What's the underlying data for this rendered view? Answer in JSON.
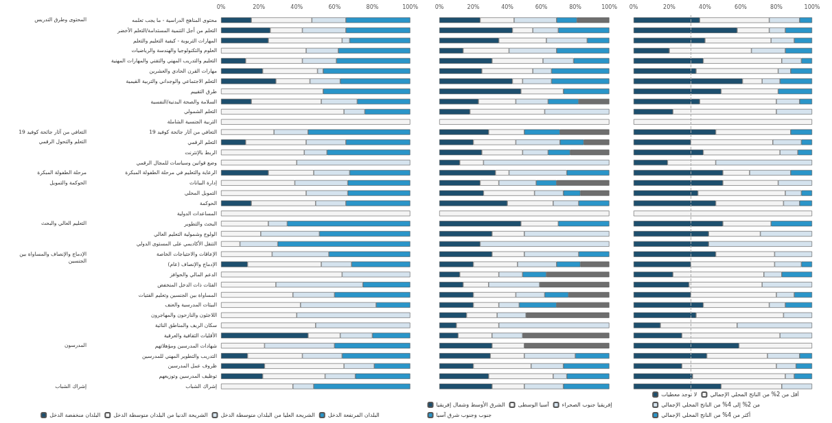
{
  "chart_data": [
    {
      "type": "bar",
      "orientation": "horizontal",
      "stacked": true,
      "xlim": [
        0,
        100
      ],
      "xticks": [
        {
          "value": 0,
          "label": "0%"
        },
        {
          "value": 20,
          "label": "20%"
        },
        {
          "value": 40,
          "label": "40%"
        },
        {
          "value": 60,
          "label": "60%"
        },
        {
          "value": 80,
          "label": "80%"
        },
        {
          "value": 100,
          "label": "100%"
        }
      ],
      "grid": false,
      "legend": "bottom",
      "categories": [
        "محتوى المناهج الدراسية - ما يجب تعلمه",
        "التعلم من أجل التنمية المستدامة/التعلم الأخضر",
        "المهارات التربوية - كيفية التعليم والتعلم",
        "العلوم والتكنولوجيا والهندسة والرياضيات",
        "التعليم والتدريب المهني والتقني والمهارات المهنية",
        "مهارات القرن الحادي والعشرين",
        "التعلم الاجتماعي والوجداني والتربية القيمية",
        "طرق التقييم",
        "السلامة والصحة البدنية/النفسية",
        "التعلم الشمولي",
        "التربية الجنسية الشاملة",
        "التعافي من آثار جائحة كوفيد 19",
        "التعلم الرقمي",
        "الربط بالإنترنت",
        "وضع قوانين وسياسات للمجال الرقمي",
        "الرعاية والتعليم في مرحلة الطفولة المبكرة",
        "إدارة البيانات",
        "التمويل المحلي",
        "الحوكمة",
        "المساعدات الدولية",
        "البحث والتطوير",
        "الولوج وشمولية التعليم العالي",
        "التنقل الأكاديمي على المستوى الدولي",
        "الإعاقات والاحتياجات الخاصة",
        "الإدماج والإنصاف (عام)",
        "الدعم المالي والحوافز",
        "الفئات ذات الدخل المنخفض",
        "المساواة بين الجنسين وتعليم الفتيات",
        "البيئات المدرسية والعنف",
        "اللاجئون والنازحون والمهاجرون",
        "سكان الريف والمناطق النائية",
        "الأقليات الثقافية والعرقية",
        "شهادات المدرسين ومؤهلاتهم",
        "التدريب والتطوير المهني للمدرسين",
        "ظروف عمل المدرسين",
        "توظيف المدرسين وتوزيعهم",
        "إشراك الشباب"
      ],
      "annotations": [
        "المحتوى وطرق التدريس",
        "التعافي من آثار جائحة كوفيد 19",
        "التعلم والتحول الرقمي",
        "مرحلة الطفولة المبكرة",
        "الحوكمة والتمويل",
        "التعليم العالي والبحث",
        "الإدماج والإنصاف والمساواة بين الجنسين",
        "المدرسون",
        "إشراك الشباب"
      ],
      "series": [
        {
          "name": "البلدان منخفضة الدخل",
          "color": "#1d4f6e",
          "values": [
            16,
            26,
            25,
            0,
            13,
            22,
            29,
            0,
            16,
            0,
            0,
            0,
            13,
            0,
            0,
            25,
            0,
            0,
            16,
            0,
            0,
            0,
            0,
            0,
            14,
            0,
            0,
            0,
            0,
            0,
            0,
            46,
            0,
            14,
            23,
            22,
            0
          ]
        },
        {
          "name": "الشريحة الدنيا من البلدان متوسطة الدخل",
          "color": "#f4f4f4",
          "values": [
            32,
            17,
            39,
            45,
            30,
            29,
            18,
            54,
            37,
            65,
            100,
            28,
            32,
            44,
            40,
            24,
            39,
            45,
            34,
            100,
            25,
            21,
            10,
            27,
            39,
            64,
            29,
            38,
            42,
            40,
            50,
            17,
            23,
            29,
            42,
            33,
            38
          ]
        },
        {
          "name": "الشريحة العليا من البلدان متوسطة الدخل",
          "color": "#d5e3ee",
          "values": [
            18,
            23,
            4,
            17,
            18,
            3,
            16,
            0,
            19,
            11,
            0,
            18,
            21,
            12,
            60,
            19,
            28,
            22,
            16,
            0,
            10,
            31,
            20,
            30,
            16,
            36,
            46,
            22,
            40,
            60,
            50,
            17,
            37,
            21,
            16,
            16,
            11
          ]
        },
        {
          "name": "البلدان المرتفعة الدخل",
          "color": "#2a95c9",
          "values": [
            34,
            34,
            32,
            38,
            39,
            46,
            37,
            46,
            28,
            24,
            0,
            54,
            34,
            44,
            0,
            32,
            33,
            33,
            34,
            0,
            65,
            48,
            70,
            43,
            31,
            0,
            25,
            40,
            18,
            0,
            0,
            20,
            40,
            36,
            19,
            29,
            51
          ]
        }
      ]
    },
    {
      "type": "bar",
      "orientation": "horizontal",
      "stacked": true,
      "xlim": [
        0,
        100
      ],
      "tick_labels": "x",
      "xticks": [
        {
          "value": 0,
          "label": "0%"
        },
        {
          "value": 20,
          "label": "20%"
        },
        {
          "value": 40,
          "label": "40%"
        },
        {
          "value": 60,
          "label": "60%"
        },
        {
          "value": 80,
          "label": "80%"
        },
        {
          "value": 100,
          "label": "100%"
        }
      ],
      "grid": false,
      "legend": "bottom",
      "categories": [
        null,
        null,
        null,
        null,
        null,
        null,
        null,
        null,
        null,
        null,
        null,
        null,
        null,
        null,
        null,
        null,
        null,
        null,
        null,
        null,
        null,
        null,
        null,
        null,
        null,
        null,
        null,
        null,
        null,
        null,
        null,
        null,
        null,
        null,
        null,
        null,
        null
      ],
      "series": [
        {
          "name": "الشرق الأوسط وشمال إفريقيا",
          "color": "#1d4f6e",
          "values": [
            24,
            43,
            35,
            14,
            31,
            25,
            43,
            48,
            23,
            18,
            0,
            29,
            20,
            25,
            12,
            33,
            24,
            26,
            40,
            0,
            48,
            31,
            24,
            31,
            20,
            12,
            14,
            20,
            20,
            16,
            10,
            11,
            31,
            30,
            20,
            29,
            31
          ]
        },
        {
          "name": "آسيا الوسطى",
          "color": "#f4f4f4",
          "values": [
            20,
            12,
            28,
            27,
            30,
            30,
            6,
            25,
            22,
            44,
            100,
            21,
            25,
            24,
            14,
            8,
            11,
            30,
            27,
            100,
            22,
            19,
            0,
            19,
            26,
            23,
            15,
            25,
            15,
            18,
            25,
            20,
            19,
            20,
            34,
            38,
            19
          ]
        },
        {
          "name": "إفريقيا جنوب الصحراء",
          "color": "#d5e3ee",
          "values": [
            25,
            15,
            24,
            28,
            18,
            11,
            17,
            0,
            19,
            38,
            0,
            0,
            26,
            15,
            74,
            34,
            22,
            17,
            15,
            0,
            0,
            50,
            76,
            32,
            23,
            14,
            30,
            17,
            12,
            17,
            65,
            18,
            0,
            30,
            19,
            8,
            23
          ]
        },
        {
          "name": "جنوب وجنوب شرق آسيا",
          "color": "#2a95c9",
          "values": [
            12,
            30,
            13,
            31,
            21,
            34,
            34,
            27,
            18,
            0,
            0,
            21,
            14,
            13,
            0,
            25,
            12,
            10,
            18,
            0,
            30,
            0,
            0,
            18,
            14,
            14,
            0,
            14,
            22,
            0,
            0,
            0,
            0,
            20,
            27,
            25,
            27
          ]
        },
        {
          "color": "#6e6e6e",
          "values": [
            19,
            0,
            0,
            0,
            0,
            0,
            0,
            0,
            18,
            0,
            0,
            29,
            15,
            23,
            0,
            0,
            31,
            17,
            0,
            0,
            0,
            0,
            0,
            0,
            17,
            37,
            41,
            24,
            31,
            49,
            0,
            51,
            50,
            0,
            0,
            0,
            0
          ]
        }
      ]
    },
    {
      "type": "bar",
      "orientation": "horizontal",
      "stacked": true,
      "xlim": [
        0,
        100
      ],
      "tick_labels": "x",
      "xticks": [
        {
          "value": 0,
          "label": "0%"
        },
        {
          "value": 20,
          "label": "20%"
        },
        {
          "value": 40,
          "label": "40%"
        },
        {
          "value": 60,
          "label": "60%"
        },
        {
          "value": 80,
          "label": "80%"
        },
        {
          "value": 100,
          "label": "100%"
        }
      ],
      "grid": false,
      "legend": "bottom",
      "ref_lines": [
        {
          "axis": "x",
          "value": 32,
          "color": "#aaaaaa",
          "line_style": "dashed"
        }
      ],
      "categories": [
        null,
        null,
        null,
        null,
        null,
        null,
        null,
        null,
        null,
        null,
        null,
        null,
        null,
        null,
        null,
        null,
        null,
        null,
        null,
        null,
        null,
        null,
        null,
        null,
        null,
        null,
        null,
        null,
        null,
        null,
        null,
        null,
        null,
        null,
        null,
        null,
        null
      ],
      "series": [
        {
          "name": "لا توجد معطيات",
          "color": "#1d4f6e",
          "values": [
            37,
            58,
            40,
            20,
            39,
            35,
            61,
            49,
            37,
            22,
            0,
            46,
            32,
            39,
            19,
            50,
            50,
            36,
            46,
            0,
            50,
            42,
            42,
            46,
            32,
            22,
            31,
            32,
            39,
            35,
            15,
            27,
            59,
            41,
            27,
            33,
            49
          ]
        },
        {
          "name": "أقل من 2% من الناتج المحلي الإجمالي",
          "color": "#f4f4f4",
          "values": [
            39,
            18,
            37,
            46,
            44,
            46,
            11,
            32,
            43,
            58,
            100,
            42,
            46,
            43,
            27,
            15,
            31,
            49,
            38,
            100,
            27,
            29,
            0,
            33,
            47,
            51,
            41,
            48,
            37,
            49,
            43,
            55,
            41,
            34,
            53,
            52,
            34
          ]
        },
        {
          "name": "من 2% إلى 4% من الناتج المحلي الإجمالي",
          "color": "#d5e3ee",
          "values": [
            17,
            9,
            13,
            19,
            11,
            7,
            10,
            0,
            13,
            20,
            0,
            0,
            16,
            10,
            54,
            23,
            19,
            9,
            9,
            0,
            0,
            29,
            58,
            21,
            15,
            10,
            28,
            10,
            9,
            16,
            42,
            18,
            0,
            18,
            11,
            5,
            17
          ]
        },
        {
          "name": "أكثر من 4% من الناتج المحلي الإجمالي",
          "color": "#2a95c9",
          "values": [
            7,
            15,
            10,
            15,
            6,
            12,
            18,
            19,
            7,
            0,
            0,
            12,
            6,
            8,
            0,
            12,
            0,
            6,
            7,
            0,
            23,
            0,
            0,
            0,
            6,
            17,
            0,
            10,
            15,
            0,
            0,
            0,
            0,
            7,
            9,
            10,
            0
          ]
        }
      ]
    }
  ]
}
